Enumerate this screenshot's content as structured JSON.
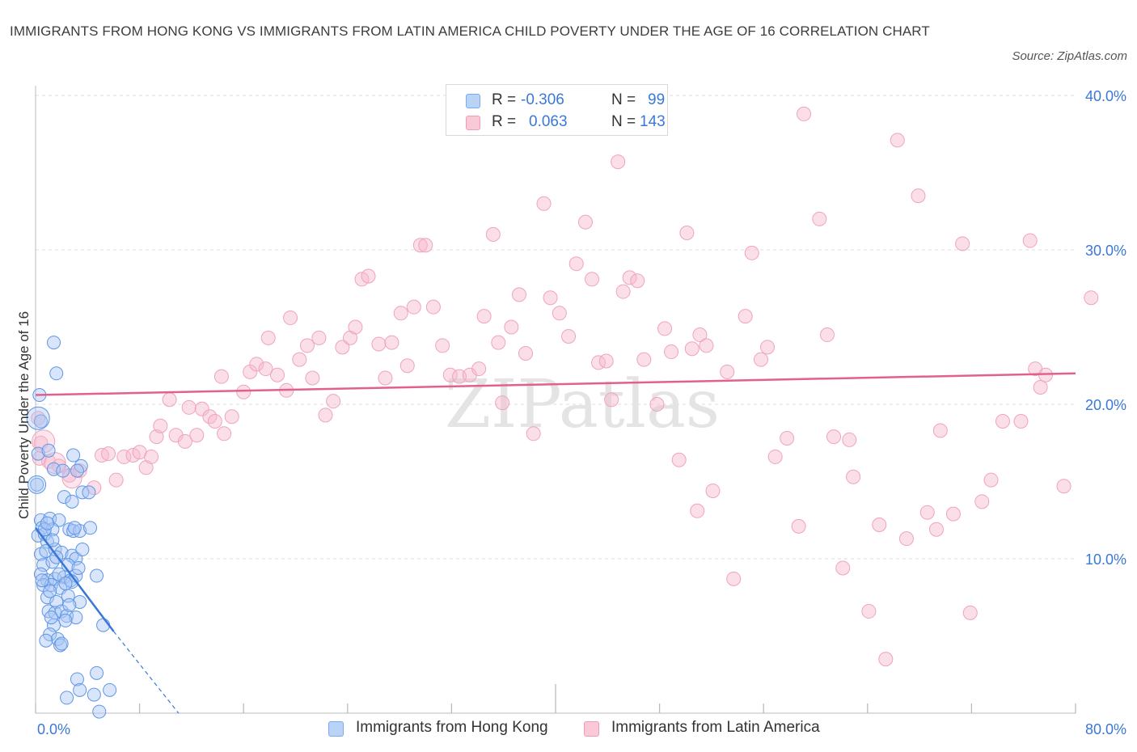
{
  "title": "IMMIGRANTS FROM HONG KONG VS IMMIGRANTS FROM LATIN AMERICA CHILD POVERTY UNDER THE AGE OF 16 CORRELATION CHART",
  "source": "Source: ZipAtlas.com",
  "watermark": "ZIPatlas",
  "legend": {
    "rows": [
      {
        "r_label": "R =",
        "r_value": "-0.306",
        "n_label": "N =",
        "n_value": "99",
        "color": "#7aaaf0"
      },
      {
        "r_label": "R =",
        "r_value": "0.063",
        "n_label": "N =",
        "n_value": "143",
        "color": "#f29bb7"
      }
    ]
  },
  "colors": {
    "blue": "#3a78d8",
    "pink": "#e2608f",
    "blue_fill": "#a9c6f3",
    "pink_fill": "#f6b8cc"
  },
  "chart_data": {
    "type": "scatter",
    "title": "IMMIGRANTS FROM HONG KONG VS IMMIGRANTS FROM LATIN AMERICA CHILD POVERTY UNDER THE AGE OF 16 CORRELATION CHART",
    "xlabel": "",
    "ylabel": "Child Poverty Under the Age of 16",
    "xlim": [
      0,
      80
    ],
    "ylim": [
      0,
      40
    ],
    "x_tick_labels": [
      "0.0%",
      "80.0%"
    ],
    "y_tick_labels": [
      "10.0%",
      "20.0%",
      "30.0%",
      "40.0%"
    ],
    "y_ticks": [
      10,
      20,
      30,
      40
    ],
    "grid": true,
    "legend_position": "top-center",
    "series": [
      {
        "name": "Immigrants from Hong Kong",
        "color": "#3a78d8",
        "trend": {
          "x": [
            0,
            6.0
          ],
          "y": [
            12.0,
            5.3
          ],
          "dashed_to": [
            11.0,
            0
          ]
        },
        "points": [
          [
            0.3,
            20.6
          ],
          [
            1.4,
            24.0
          ],
          [
            1.6,
            22.0
          ],
          [
            0.4,
            18.9
          ],
          [
            0.2,
            16.8
          ],
          [
            0.1,
            14.8
          ],
          [
            1.0,
            17.0
          ],
          [
            1.4,
            15.8
          ],
          [
            2.1,
            15.7
          ],
          [
            2.9,
            16.7
          ],
          [
            3.5,
            16.0
          ],
          [
            3.2,
            15.7
          ],
          [
            3.6,
            14.3
          ],
          [
            4.1,
            14.3
          ],
          [
            2.2,
            14.0
          ],
          [
            2.8,
            13.7
          ],
          [
            0.4,
            12.5
          ],
          [
            1.1,
            12.6
          ],
          [
            1.8,
            12.5
          ],
          [
            0.5,
            12.0
          ],
          [
            0.2,
            11.5
          ],
          [
            0.7,
            11.6
          ],
          [
            1.3,
            11.9
          ],
          [
            2.6,
            11.9
          ],
          [
            2.9,
            11.8
          ],
          [
            3.4,
            11.8
          ],
          [
            4.2,
            12.0
          ],
          [
            0.9,
            11.1
          ],
          [
            0.4,
            10.3
          ],
          [
            0.8,
            10.5
          ],
          [
            1.5,
            10.6
          ],
          [
            2.0,
            10.4
          ],
          [
            2.8,
            10.2
          ],
          [
            3.1,
            10.0
          ],
          [
            3.6,
            10.6
          ],
          [
            0.6,
            9.6
          ],
          [
            1.3,
            9.8
          ],
          [
            2.5,
            9.6
          ],
          [
            0.4,
            9.0
          ],
          [
            0.9,
            8.6
          ],
          [
            1.5,
            8.7
          ],
          [
            2.2,
            8.8
          ],
          [
            2.7,
            8.6
          ],
          [
            3.1,
            8.9
          ],
          [
            4.7,
            8.9
          ],
          [
            0.6,
            8.3
          ],
          [
            1.2,
            8.3
          ],
          [
            1.9,
            8.1
          ],
          [
            2.8,
            8.5
          ],
          [
            0.9,
            7.5
          ],
          [
            1.6,
            7.2
          ],
          [
            2.5,
            7.6
          ],
          [
            3.4,
            7.2
          ],
          [
            1.0,
            6.6
          ],
          [
            1.5,
            6.5
          ],
          [
            2.0,
            6.6
          ],
          [
            2.4,
            6.3
          ],
          [
            3.1,
            6.2
          ],
          [
            1.4,
            5.7
          ],
          [
            2.3,
            6.0
          ],
          [
            5.2,
            5.7
          ],
          [
            1.1,
            5.1
          ],
          [
            1.7,
            4.8
          ],
          [
            0.8,
            4.7
          ],
          [
            1.9,
            4.4
          ],
          [
            2.0,
            4.5
          ],
          [
            4.7,
            2.6
          ],
          [
            3.2,
            2.2
          ],
          [
            3.4,
            1.5
          ],
          [
            5.7,
            1.5
          ],
          [
            2.4,
            1.0
          ],
          [
            4.5,
            1.2
          ],
          [
            4.9,
            0.1
          ],
          [
            1.3,
            11.2
          ],
          [
            0.5,
            8.6
          ],
          [
            1.8,
            9.0
          ],
          [
            2.3,
            8.4
          ],
          [
            3.3,
            9.4
          ],
          [
            1.1,
            7.9
          ],
          [
            0.7,
            11.9
          ],
          [
            1.6,
            10.1
          ],
          [
            2.6,
            7.0
          ],
          [
            1.2,
            6.2
          ],
          [
            0.9,
            12.3
          ],
          [
            3.0,
            12.0
          ]
        ]
      },
      {
        "name": "Immigrants from Latin America",
        "color": "#e2608f",
        "trend": {
          "x": [
            0,
            80
          ],
          "y": [
            20.6,
            22.0
          ]
        },
        "points": [
          [
            0.2,
            19.1
          ],
          [
            0.4,
            17.5
          ],
          [
            0.3,
            16.5
          ],
          [
            1.0,
            16.3
          ],
          [
            1.8,
            16.0
          ],
          [
            2.6,
            15.4
          ],
          [
            3.4,
            15.7
          ],
          [
            4.5,
            14.6
          ],
          [
            5.1,
            16.7
          ],
          [
            5.6,
            16.8
          ],
          [
            6.2,
            15.1
          ],
          [
            6.8,
            16.6
          ],
          [
            7.5,
            16.7
          ],
          [
            8.0,
            16.9
          ],
          [
            8.5,
            15.9
          ],
          [
            8.9,
            16.6
          ],
          [
            9.3,
            17.9
          ],
          [
            9.6,
            18.6
          ],
          [
            10.3,
            20.3
          ],
          [
            10.8,
            18.0
          ],
          [
            11.5,
            17.6
          ],
          [
            11.8,
            19.8
          ],
          [
            12.4,
            18.0
          ],
          [
            12.8,
            19.7
          ],
          [
            13.4,
            19.2
          ],
          [
            13.8,
            18.9
          ],
          [
            14.5,
            18.1
          ],
          [
            15.1,
            19.2
          ],
          [
            14.3,
            21.8
          ],
          [
            16.0,
            20.8
          ],
          [
            16.5,
            22.1
          ],
          [
            17.0,
            22.6
          ],
          [
            17.7,
            22.3
          ],
          [
            17.9,
            24.3
          ],
          [
            18.6,
            21.9
          ],
          [
            19.3,
            20.9
          ],
          [
            19.6,
            25.6
          ],
          [
            20.3,
            22.9
          ],
          [
            20.9,
            23.8
          ],
          [
            21.3,
            21.7
          ],
          [
            21.8,
            24.3
          ],
          [
            22.3,
            19.3
          ],
          [
            22.9,
            20.2
          ],
          [
            23.6,
            23.7
          ],
          [
            24.2,
            24.3
          ],
          [
            24.6,
            25.0
          ],
          [
            25.1,
            28.1
          ],
          [
            25.6,
            28.3
          ],
          [
            26.4,
            23.9
          ],
          [
            26.9,
            21.7
          ],
          [
            27.4,
            24.0
          ],
          [
            28.1,
            25.9
          ],
          [
            28.6,
            22.5
          ],
          [
            29.1,
            26.3
          ],
          [
            29.6,
            30.3
          ],
          [
            30.0,
            30.3
          ],
          [
            30.6,
            26.3
          ],
          [
            31.3,
            23.8
          ],
          [
            31.9,
            21.9
          ],
          [
            32.6,
            21.8
          ],
          [
            33.4,
            21.9
          ],
          [
            34.1,
            22.3
          ],
          [
            34.5,
            25.7
          ],
          [
            35.2,
            31.0
          ],
          [
            35.6,
            24.0
          ],
          [
            35.9,
            20.1
          ],
          [
            36.6,
            25.0
          ],
          [
            37.2,
            27.1
          ],
          [
            37.7,
            23.3
          ],
          [
            38.3,
            18.1
          ],
          [
            39.1,
            33.0
          ],
          [
            39.6,
            26.9
          ],
          [
            40.3,
            25.9
          ],
          [
            41.0,
            24.4
          ],
          [
            41.6,
            29.1
          ],
          [
            42.3,
            31.8
          ],
          [
            42.8,
            28.1
          ],
          [
            43.3,
            22.7
          ],
          [
            43.9,
            22.8
          ],
          [
            44.3,
            20.3
          ],
          [
            44.8,
            35.7
          ],
          [
            45.2,
            27.3
          ],
          [
            45.7,
            28.2
          ],
          [
            46.3,
            28.0
          ],
          [
            46.8,
            22.9
          ],
          [
            47.8,
            20.0
          ],
          [
            48.4,
            24.9
          ],
          [
            48.9,
            23.4
          ],
          [
            49.5,
            16.4
          ],
          [
            50.1,
            31.1
          ],
          [
            50.5,
            23.6
          ],
          [
            51.1,
            24.5
          ],
          [
            51.6,
            23.8
          ],
          [
            50.9,
            13.1
          ],
          [
            52.1,
            14.4
          ],
          [
            53.2,
            22.1
          ],
          [
            53.7,
            8.7
          ],
          [
            54.6,
            25.7
          ],
          [
            55.1,
            29.8
          ],
          [
            55.8,
            22.9
          ],
          [
            56.3,
            23.7
          ],
          [
            56.9,
            16.6
          ],
          [
            57.8,
            17.8
          ],
          [
            58.7,
            12.1
          ],
          [
            59.1,
            38.8
          ],
          [
            60.3,
            32.0
          ],
          [
            60.9,
            24.5
          ],
          [
            61.4,
            17.9
          ],
          [
            62.1,
            9.4
          ],
          [
            62.6,
            17.7
          ],
          [
            62.9,
            15.3
          ],
          [
            64.1,
            6.6
          ],
          [
            64.9,
            12.2
          ],
          [
            65.4,
            3.5
          ],
          [
            66.3,
            37.1
          ],
          [
            67.0,
            11.3
          ],
          [
            67.9,
            33.5
          ],
          [
            68.6,
            13.0
          ],
          [
            69.3,
            11.9
          ],
          [
            69.6,
            18.3
          ],
          [
            70.6,
            12.9
          ],
          [
            71.3,
            30.4
          ],
          [
            71.9,
            6.5
          ],
          [
            72.8,
            13.7
          ],
          [
            73.5,
            15.1
          ],
          [
            74.4,
            18.9
          ],
          [
            75.8,
            18.9
          ],
          [
            76.5,
            30.6
          ],
          [
            76.9,
            22.3
          ],
          [
            77.3,
            21.1
          ],
          [
            77.7,
            21.9
          ],
          [
            79.1,
            14.7
          ],
          [
            81.2,
            26.9
          ]
        ]
      }
    ]
  }
}
